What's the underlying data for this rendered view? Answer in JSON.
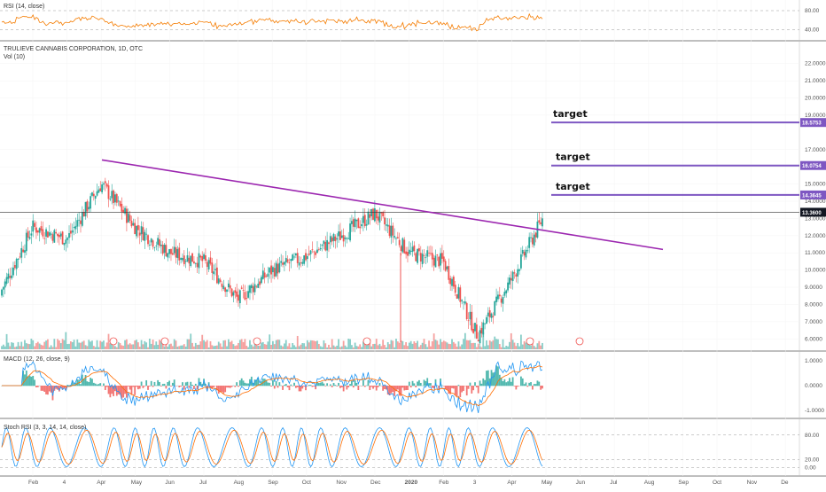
{
  "colors": {
    "up": "#26a69a",
    "down": "#ef5350",
    "trendline": "#9c27b0",
    "target": "#7e57c2",
    "rsi": "#f57c00",
    "macd": "#2196f3",
    "signal": "#ff6d00",
    "stoch_k": "#2196f3",
    "stoch_d": "#ff6d00",
    "price_badge": "#131722"
  },
  "panes": {
    "rsi_label": "RSI (14, close)",
    "main_title": "TRULIEVE CANNABIS CORPORATION, 1D, OTC",
    "vol_label": "Vol (10)",
    "macd_label": "MACD (12, 26, close, 9)",
    "stoch_label": "Stoch RSI (3, 3, 14, 14, close)"
  },
  "chart_data": {
    "type": "candlestick",
    "price_axis": {
      "ticks": [
        "22.0000",
        "21.0000",
        "20.0000",
        "19.0000",
        "17.0000",
        "16.0000",
        "15.0000",
        "14.0000",
        "13.0000",
        "12.0000",
        "11.0000",
        "10.0000",
        "9.0000",
        "8.0000",
        "7.0000",
        "6.0000"
      ],
      "tick_values": [
        22,
        21,
        20,
        19,
        17,
        16,
        15,
        14,
        13,
        12,
        11,
        10,
        9,
        8,
        7,
        6
      ],
      "ylim": [
        5.5,
        22.5
      ]
    },
    "x_axis": {
      "labels": [
        "Feb",
        "4",
        "Apr",
        "May",
        "Jun",
        "Jul",
        "Aug",
        "Sep",
        "Oct",
        "Nov",
        "Dec",
        "2020",
        "Feb",
        "3",
        "Apr",
        "May",
        "Jun",
        "Jul",
        "Aug",
        "Sep",
        "Oct",
        "Nov",
        "De"
      ]
    },
    "last_price": {
      "value": 13.36,
      "label": "13.3600"
    },
    "targets": [
      {
        "label": "target",
        "value": 18.5753,
        "price_label": "18.5753"
      },
      {
        "label": "target",
        "value": 16.0754,
        "price_label": "16.0754"
      },
      {
        "label": "target",
        "value": 14.3645,
        "price_label": "14.3645"
      }
    ],
    "trendline": {
      "from_month": "Apr 2019",
      "from_value": 16.4,
      "to_month": "Jul 2020",
      "to_value": 11.2
    },
    "price_path": {
      "months": [
        "Jan 2019",
        "Feb",
        "Mar",
        "Apr",
        "May",
        "Jun",
        "Jul",
        "Aug",
        "Sep",
        "Oct",
        "Nov",
        "Dec",
        "Jan 2020",
        "Feb",
        "Mar",
        "Apr",
        "May 2020"
      ],
      "approx_close": [
        8.5,
        12.5,
        11.8,
        15.0,
        12.5,
        11.0,
        10.5,
        8.3,
        10.0,
        10.8,
        12.0,
        13.3,
        11.0,
        10.5,
        6.2,
        9.5,
        13.36
      ]
    },
    "rsi_pane": {
      "ticks": [
        "80.00",
        "40.00"
      ],
      "tick_values": [
        80,
        40
      ],
      "ylim": [
        20,
        95
      ]
    },
    "macd_pane": {
      "ticks": [
        "1.0000",
        "0.0000",
        "-1.0000"
      ],
      "tick_values": [
        1,
        0,
        -1
      ],
      "ylim": [
        -1.5,
        1.5
      ]
    },
    "stoch_pane": {
      "ticks": [
        "80.00",
        "20.00",
        "0.00"
      ],
      "tick_values": [
        80,
        20,
        0
      ],
      "ylim": [
        -10,
        110
      ]
    }
  }
}
